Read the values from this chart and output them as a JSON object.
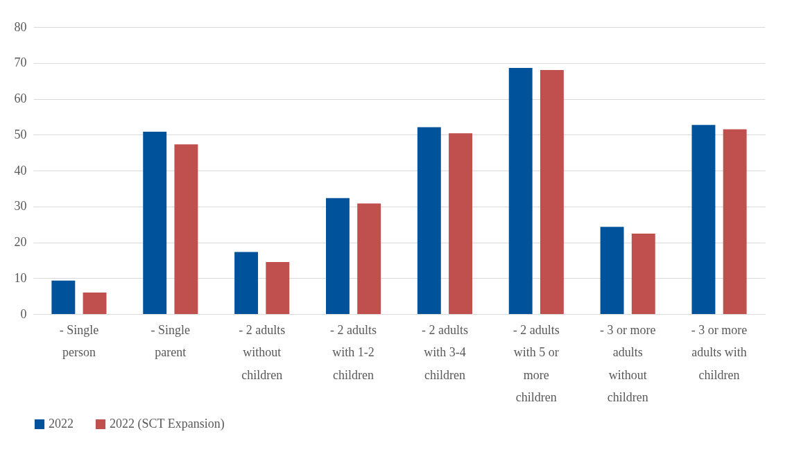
{
  "chart_data": {
    "type": "bar",
    "categories": [
      "- Single person",
      "- Single parent",
      "- 2 adults without children",
      "- 2 adults with 1-2 children",
      "- 2 adults with 3-4 children",
      "- 2 adults with 5 or more children",
      "- 3 or more adults without children",
      "- 3 or more adults with children"
    ],
    "series": [
      {
        "name": "2022",
        "color": "#00539b",
        "values": [
          9.3,
          50.8,
          17.3,
          32.3,
          52.1,
          68.6,
          24.3,
          52.7
        ]
      },
      {
        "name": "2022 (SCT Expansion)",
        "color": "#c0504d",
        "values": [
          6.0,
          47.3,
          14.5,
          30.8,
          50.4,
          68.0,
          22.4,
          51.5
        ]
      }
    ],
    "ylim": [
      0,
      80
    ],
    "yticks": [
      0,
      10,
      20,
      30,
      40,
      50,
      60,
      70,
      80
    ],
    "grid": "y",
    "legend": "bottom"
  }
}
